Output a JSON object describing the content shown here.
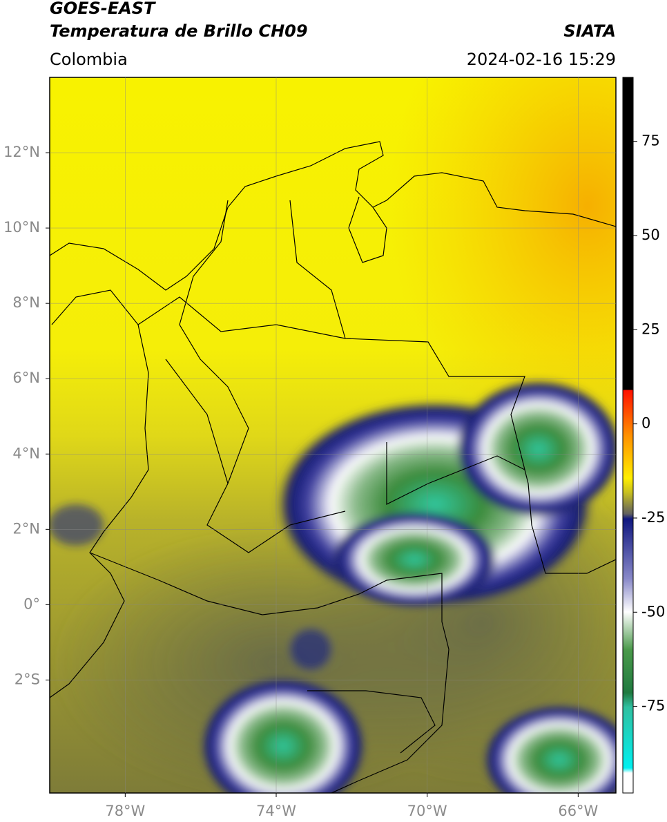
{
  "header": {
    "satellite": "GOES-EAST",
    "product": "Temperatura de Brillo CH09",
    "source": "SIATA",
    "region": "Colombia",
    "datetime": "2024-02-16 15:29"
  },
  "map": {
    "xlim": [
      -80,
      -65
    ],
    "ylim": [
      -5,
      14
    ],
    "xticks": [
      {
        "value": -78,
        "label": "78°W"
      },
      {
        "value": -74,
        "label": "74°W"
      },
      {
        "value": -70,
        "label": "70°W"
      },
      {
        "value": -66,
        "label": "66°W"
      }
    ],
    "yticks": [
      {
        "value": 12,
        "label": "12°N"
      },
      {
        "value": 10,
        "label": "10°N"
      },
      {
        "value": 8,
        "label": "8°N"
      },
      {
        "value": 6,
        "label": "6°N"
      },
      {
        "value": 4,
        "label": "4°N"
      },
      {
        "value": 2,
        "label": "2°N"
      },
      {
        "value": 0,
        "label": "0°"
      },
      {
        "value": -2,
        "label": "2°S"
      }
    ]
  },
  "colorbar": {
    "lim": [
      -98,
      92
    ],
    "ticks": [
      75,
      50,
      25,
      0,
      -25,
      -50,
      -75
    ]
  }
}
